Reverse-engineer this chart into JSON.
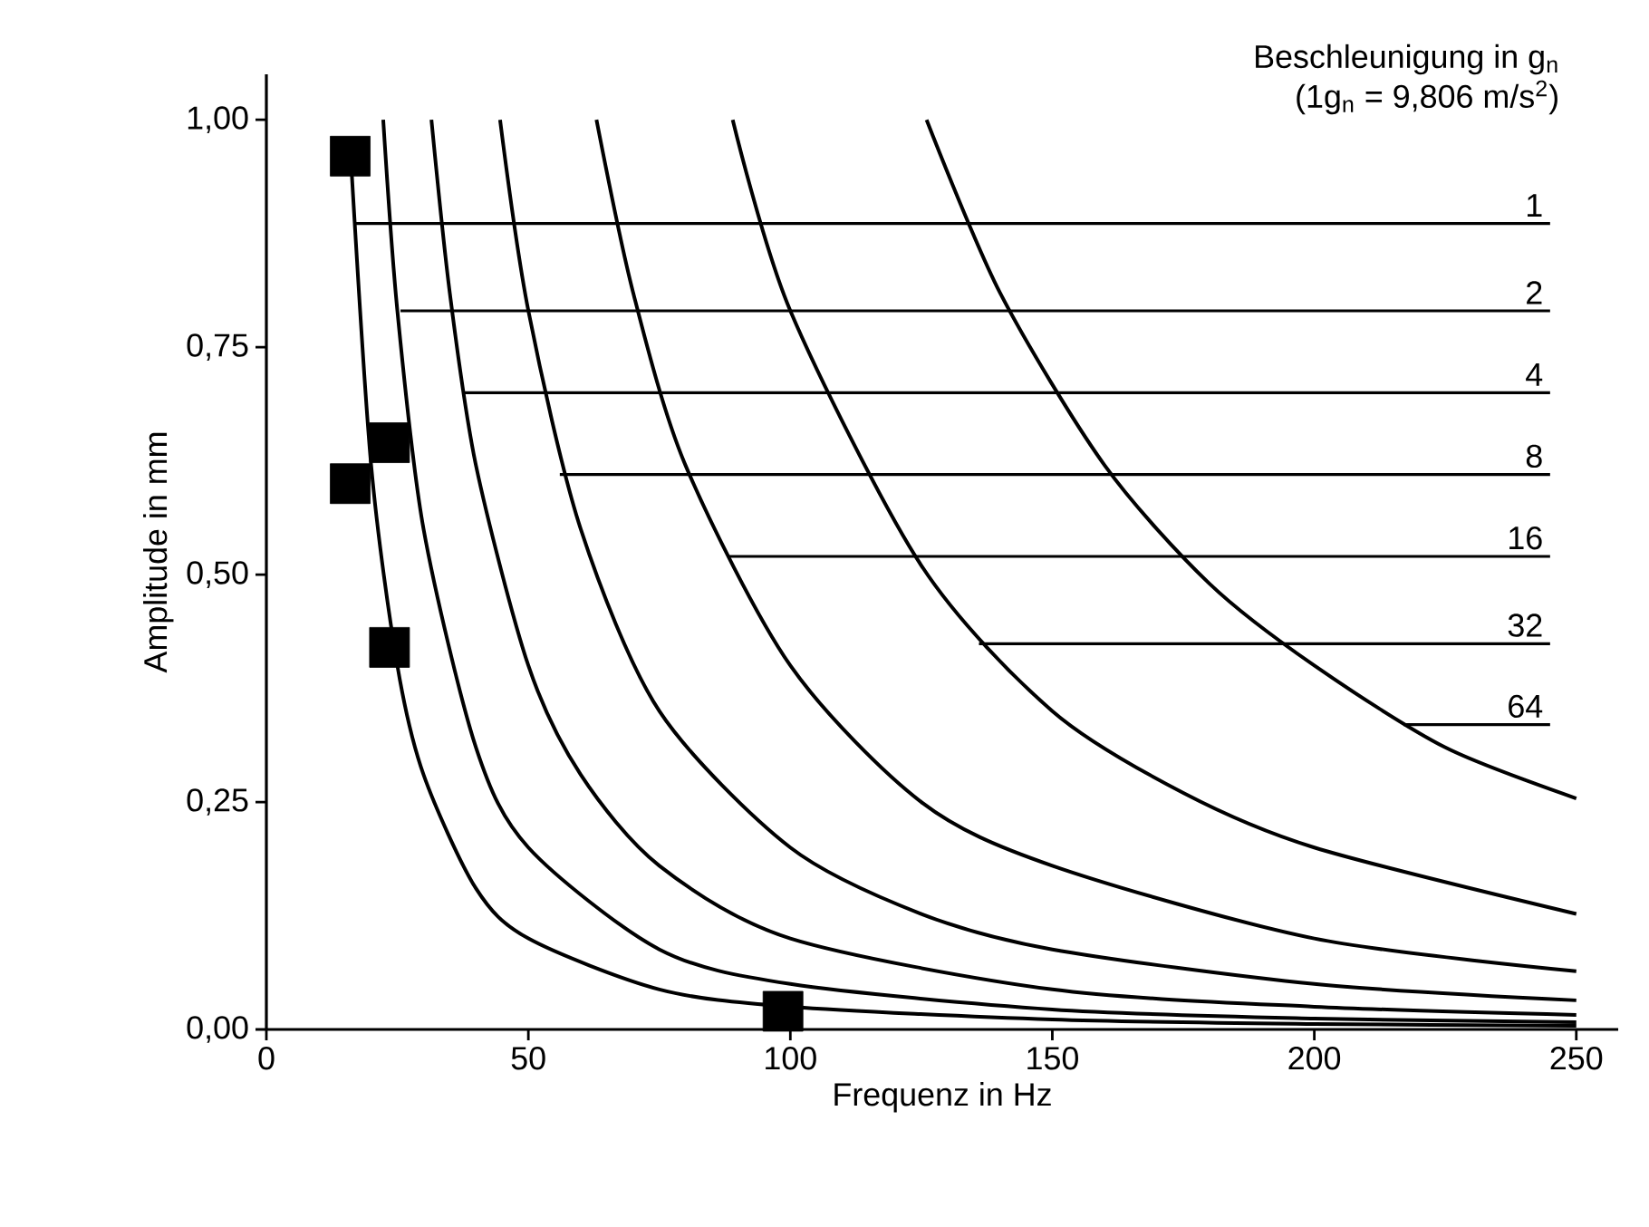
{
  "chart_data": {
    "type": "line",
    "title": "Beschleunigung in g$_{n}$",
    "subtitle": "(1g$_{n}$ = 9,806 m/s$^{2}$)",
    "xlabel": "Frequenz in Hz",
    "ylabel": "Amplitude in mm",
    "xlim": [
      0,
      258
    ],
    "ylim": [
      0,
      1.05
    ],
    "xticks": [
      0,
      50,
      100,
      150,
      200,
      250
    ],
    "yticks": [
      {
        "value": 0,
        "label": "0,00"
      },
      {
        "value": 0.25,
        "label": "0,25"
      },
      {
        "value": 0.5,
        "label": "0,50"
      },
      {
        "value": 0.75,
        "label": "0,75"
      },
      {
        "value": 1,
        "label": "1,00"
      }
    ],
    "marker": "none",
    "line_style": "solid",
    "series": [
      {
        "color": "#000000",
        "x": [
          16,
          20,
          25,
          30,
          40,
          50,
          75,
          100,
          150,
          200,
          250
        ],
        "values": [
          0.97,
          0.62,
          0.4,
          0.28,
          0.155,
          0.1,
          0.044,
          0.025,
          0.011,
          0.006,
          0.004
        ]
      },
      {
        "color": "#000000",
        "x": [
          22.3,
          25,
          30,
          40,
          50,
          75,
          100,
          150,
          200,
          250
        ],
        "values": [
          1.0,
          0.79,
          0.55,
          0.31,
          0.2,
          0.088,
          0.05,
          0.022,
          0.012,
          0.008
        ]
      },
      {
        "color": "#000000",
        "x": [
          31.5,
          35,
          40,
          50,
          60,
          75,
          100,
          150,
          200,
          250
        ],
        "values": [
          1.0,
          0.81,
          0.62,
          0.4,
          0.28,
          0.18,
          0.1,
          0.044,
          0.025,
          0.016
        ]
      },
      {
        "color": "#000000",
        "x": [
          44.6,
          50,
          60,
          75,
          100,
          125,
          150,
          200,
          250
        ],
        "values": [
          1.0,
          0.79,
          0.55,
          0.35,
          0.2,
          0.127,
          0.088,
          0.05,
          0.032
        ]
      },
      {
        "color": "#000000",
        "x": [
          63,
          70,
          80,
          100,
          125,
          150,
          200,
          250
        ],
        "values": [
          1.0,
          0.81,
          0.62,
          0.4,
          0.25,
          0.18,
          0.1,
          0.064
        ]
      },
      {
        "color": "#000000",
        "x": [
          89,
          100,
          125,
          150,
          175,
          200,
          250
        ],
        "values": [
          1.0,
          0.79,
          0.51,
          0.35,
          0.26,
          0.2,
          0.127
        ]
      },
      {
        "color": "#000000",
        "x": [
          126,
          140,
          160,
          180,
          200,
          225,
          250
        ],
        "values": [
          1.0,
          0.81,
          0.62,
          0.49,
          0.4,
          0.31,
          0.254
        ]
      },
      {
        "type": "scatter",
        "marker": "square",
        "color": "#000000",
        "x": [
          16,
          16,
          23.5,
          23.5,
          98.6
        ],
        "values": [
          0.96,
          0.6,
          0.645,
          0.42,
          0.02
        ]
      }
    ],
    "annotations": [
      {
        "text": "1",
        "x": 17,
        "y": 0.886
      },
      {
        "text": "2",
        "x": 25.6,
        "y": 0.79
      },
      {
        "text": "4",
        "x": 37.7,
        "y": 0.7
      },
      {
        "text": "8",
        "x": 56,
        "y": 0.61
      },
      {
        "text": "16",
        "x": 88,
        "y": 0.52
      },
      {
        "text": "32",
        "x": 136,
        "y": 0.424
      },
      {
        "text": "64",
        "x": 217,
        "y": 0.335
      }
    ]
  }
}
